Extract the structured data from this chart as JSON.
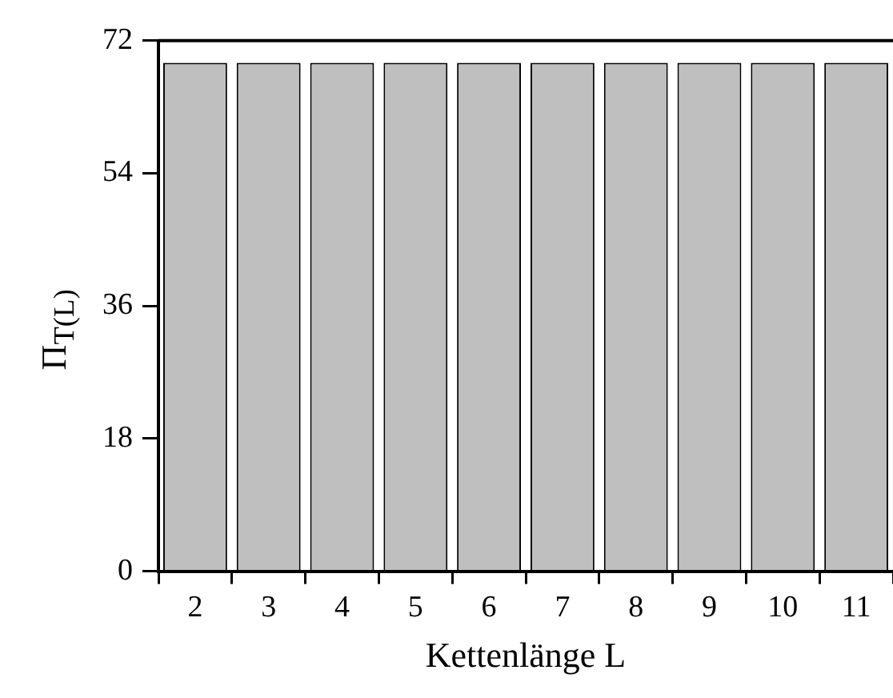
{
  "chart_data": {
    "type": "bar",
    "xlabel": "Kettenlänge L",
    "ylabel": "Π$_{T(L)}$",
    "categories": [
      "2",
      "3",
      "4",
      "5",
      "6",
      "7",
      "8",
      "9",
      "10",
      "11"
    ],
    "values": [
      69,
      69,
      69,
      69,
      69,
      69,
      69,
      69,
      69,
      69
    ],
    "color": "#bfbfbf",
    "ylim": [
      0,
      72
    ],
    "yticks": [
      0,
      18,
      36,
      54,
      72
    ],
    "grid": false,
    "legend": false
  }
}
